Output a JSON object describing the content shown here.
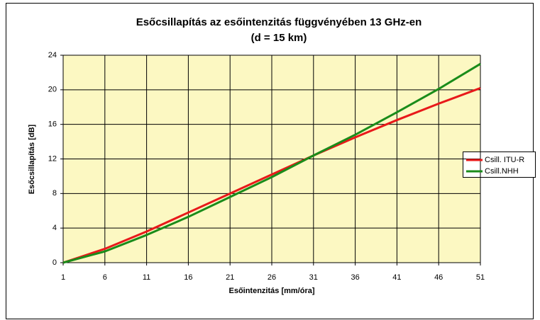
{
  "chart_data": {
    "type": "line",
    "title": "Esőcsillapítás az esőintenzitás függvényében 13 GHz-en",
    "subtitle": "(d = 15 km)",
    "x_label": "Esőintenzitás [mm/óra]",
    "y_label": "Esőcsillapítás [dB]",
    "x": [
      1,
      6,
      11,
      16,
      21,
      26,
      31,
      36,
      41,
      46,
      51
    ],
    "series": [
      {
        "name": "Csill. ITU-R",
        "color": "#e8191a",
        "values": [
          0,
          1.6,
          3.6,
          5.8,
          8.0,
          10.2,
          12.4,
          14.5,
          16.5,
          18.4,
          20.2
        ]
      },
      {
        "name": "Csill.NHH",
        "color": "#1a8c1a",
        "values": [
          0,
          1.3,
          3.2,
          5.3,
          7.6,
          9.9,
          12.4,
          14.8,
          17.4,
          20.1,
          23.0
        ]
      }
    ],
    "xlim": [
      1,
      51
    ],
    "xticks": [
      1,
      6,
      11,
      16,
      21,
      26,
      31,
      36,
      41,
      46,
      51
    ],
    "ylim": [
      0,
      24
    ],
    "yticks": [
      0,
      4,
      8,
      12,
      16,
      20,
      24
    ],
    "grid": true,
    "legend": "right"
  }
}
